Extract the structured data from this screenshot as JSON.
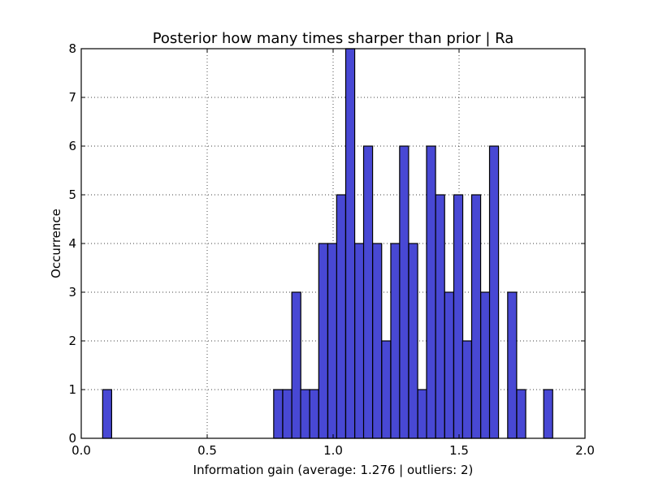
{
  "chart_data": {
    "type": "bar",
    "title": "Posterior how many times sharper than prior | Ra",
    "xlabel": "Information gain (average: 1.276 | outliers: 2)",
    "ylabel": "Occurrence",
    "xlim": [
      0.0,
      2.0
    ],
    "ylim": [
      0,
      8
    ],
    "bin_width": 0.0357,
    "xticks": [
      "0.0",
      "0.5",
      "1.0",
      "1.5",
      "2.0"
    ],
    "xtick_values": [
      0.0,
      0.5,
      1.0,
      1.5,
      2.0
    ],
    "yticks": [
      "0",
      "1",
      "2",
      "3",
      "4",
      "5",
      "6",
      "7",
      "8"
    ],
    "ytick_values": [
      0,
      1,
      2,
      3,
      4,
      5,
      6,
      7,
      8
    ],
    "grid": true,
    "bins": [
      {
        "x": 0.085,
        "value": 1
      },
      {
        "x": 0.764,
        "value": 1
      },
      {
        "x": 0.8,
        "value": 1
      },
      {
        "x": 0.836,
        "value": 3
      },
      {
        "x": 0.871,
        "value": 1
      },
      {
        "x": 0.907,
        "value": 1
      },
      {
        "x": 0.943,
        "value": 4
      },
      {
        "x": 0.979,
        "value": 4
      },
      {
        "x": 1.014,
        "value": 5
      },
      {
        "x": 1.05,
        "value": 8
      },
      {
        "x": 1.086,
        "value": 4
      },
      {
        "x": 1.121,
        "value": 6
      },
      {
        "x": 1.157,
        "value": 4
      },
      {
        "x": 1.193,
        "value": 2
      },
      {
        "x": 1.229,
        "value": 4
      },
      {
        "x": 1.264,
        "value": 6
      },
      {
        "x": 1.3,
        "value": 4
      },
      {
        "x": 1.336,
        "value": 1
      },
      {
        "x": 1.371,
        "value": 6
      },
      {
        "x": 1.407,
        "value": 5
      },
      {
        "x": 1.443,
        "value": 3
      },
      {
        "x": 1.479,
        "value": 5
      },
      {
        "x": 1.514,
        "value": 2
      },
      {
        "x": 1.55,
        "value": 5
      },
      {
        "x": 1.586,
        "value": 3
      },
      {
        "x": 1.621,
        "value": 6
      },
      {
        "x": 1.693,
        "value": 3
      },
      {
        "x": 1.729,
        "value": 1
      },
      {
        "x": 1.836,
        "value": 1
      }
    ],
    "colors": {
      "bar_fill": "#4848d4",
      "bar_edge": "#000000"
    }
  }
}
